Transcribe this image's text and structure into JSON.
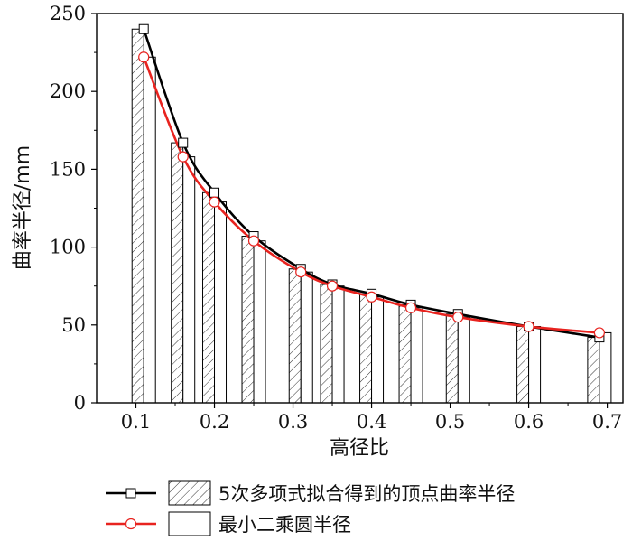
{
  "chart_data": {
    "type": "bar",
    "xlabel": "高径比",
    "ylabel": "曲率半径/mm",
    "xlim": [
      0.05,
      0.72
    ],
    "ylim": [
      0,
      250
    ],
    "xticks": [
      "0.1",
      "0.2",
      "0.3",
      "0.4",
      "0.5",
      "0.6",
      "0.7"
    ],
    "xtick_values": [
      0.1,
      0.2,
      0.3,
      0.4,
      0.5,
      0.6,
      0.7
    ],
    "yticks": [
      "0",
      "50",
      "100",
      "150",
      "200",
      "250"
    ],
    "ytick_values": [
      0,
      50,
      100,
      150,
      200,
      250
    ],
    "x": [
      0.11,
      0.16,
      0.2,
      0.25,
      0.31,
      0.35,
      0.4,
      0.45,
      0.51,
      0.6,
      0.69
    ],
    "series": [
      {
        "name": "5次多项式拟合得到的顶点曲率半径",
        "values": [
          240,
          167,
          135,
          107,
          86,
          76,
          70,
          63,
          57,
          49,
          42
        ],
        "style": "hatched-bar-with-black-square-line",
        "color": "#000000"
      },
      {
        "name": "最小二乘圆半径",
        "values": [
          222,
          158,
          129,
          104,
          84,
          75,
          68,
          61,
          55,
          49,
          45
        ],
        "style": "open-bar-with-red-circle-line",
        "color": "#e8231f"
      }
    ],
    "grid": false,
    "legend_position": "bottom"
  }
}
